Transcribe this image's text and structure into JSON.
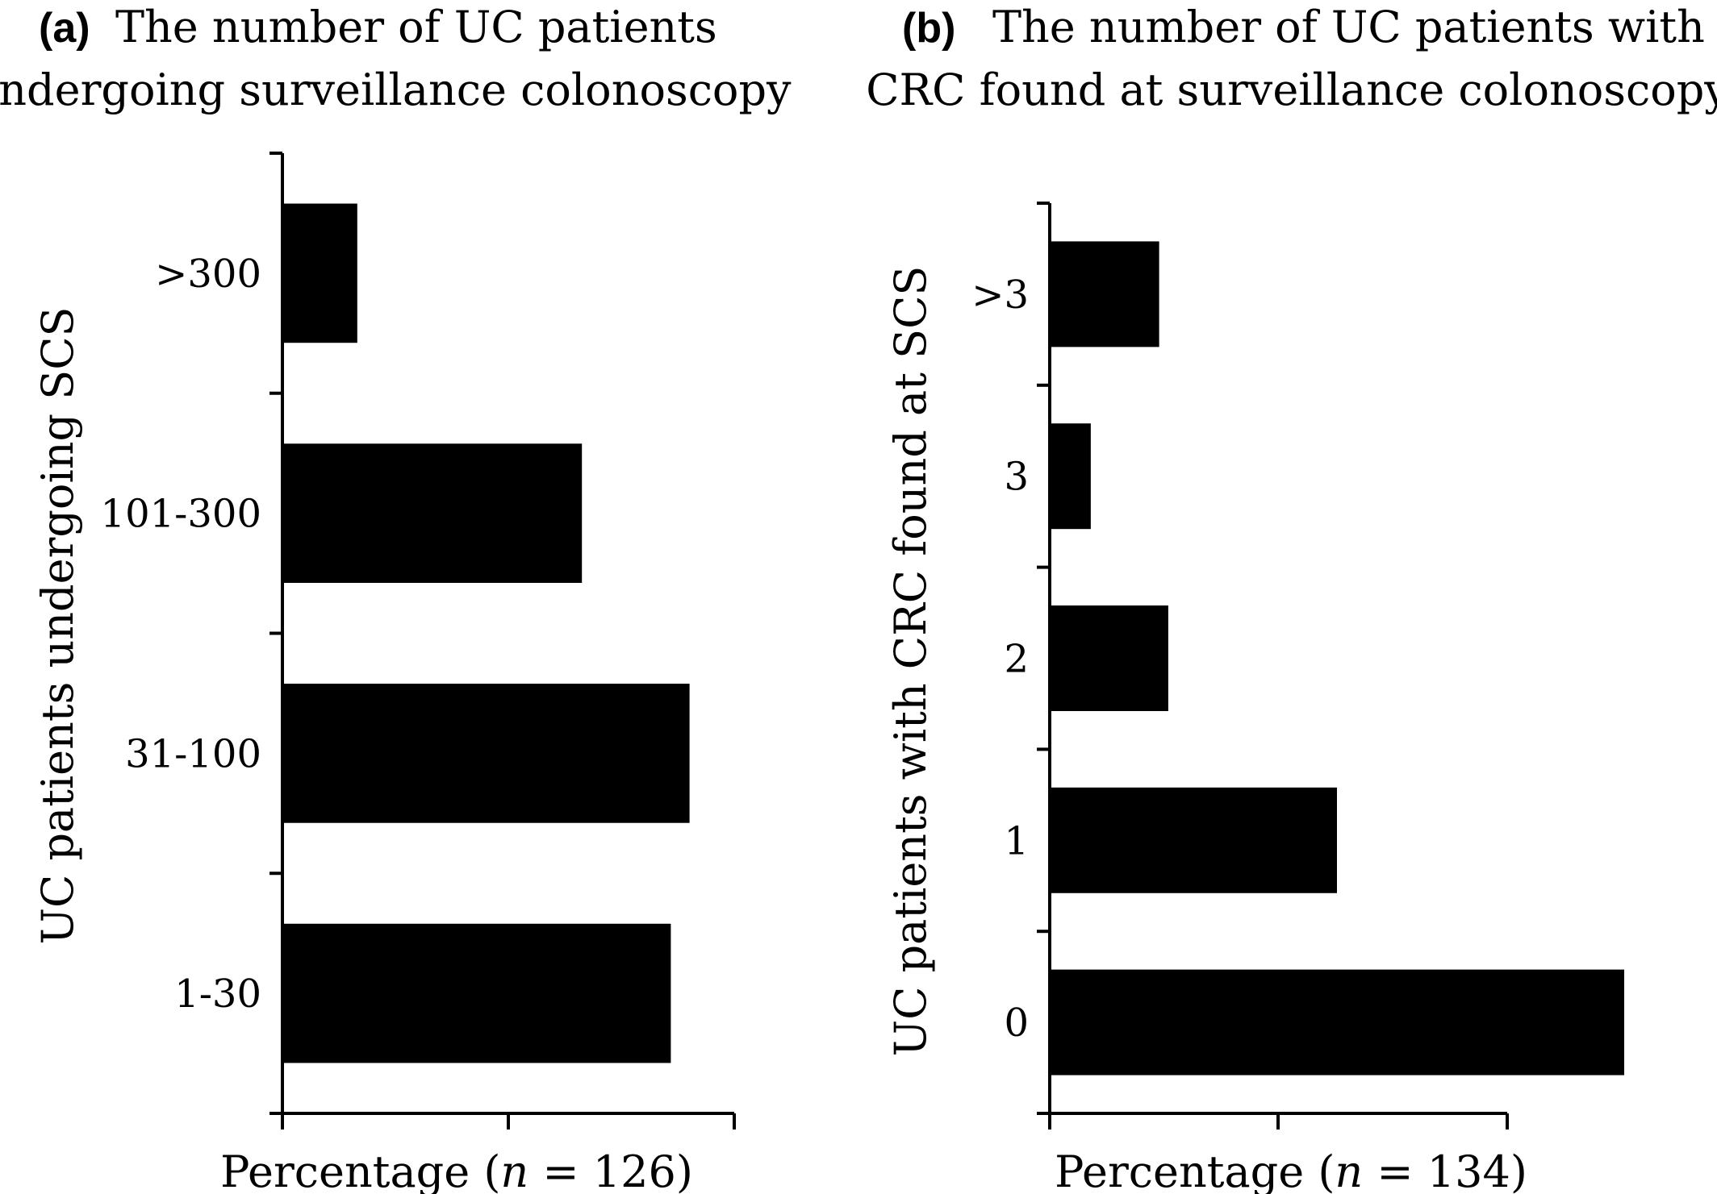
{
  "panels": [
    {
      "label": "(a)",
      "title_line1": "The number of UC patients",
      "title_line2": "undergoing surveillance colonoscopy",
      "xlabel_prefix": "Percentage (",
      "xlabel_n": "n",
      "xlabel_suffix": " = 126)",
      "ylabel": "UC patients undergoing SCS"
    },
    {
      "label": "(b)",
      "title_line1": "The number of UC patients with",
      "title_line2": "CRC found at surveillance colonoscopy",
      "xlabel_prefix": "Percentage (",
      "xlabel_n": "n",
      "xlabel_suffix": " = 134)",
      "ylabel": "UC patients with CRC found at SCS"
    }
  ],
  "chart_data": [
    {
      "type": "bar",
      "orientation": "horizontal",
      "title": "The number of UC patients undergoing surveillance colonoscopy",
      "xlabel": "Percentage (n = 126)",
      "ylabel": "UC patients undergoing SCS",
      "categories": [
        "1-30",
        "31-100",
        "101-300",
        ">300"
      ],
      "values": [
        0.83,
        0.87,
        0.64,
        0.16
      ],
      "value_units": "relative (fraction of x-axis range; no tick values printed)",
      "xlim": [
        0,
        1
      ],
      "grid": false,
      "bar_color": "#000000"
    },
    {
      "type": "bar",
      "orientation": "horizontal",
      "title": "The number of UC patients with CRC found at surveillance colonoscopy",
      "xlabel": "Percentage (n = 134)",
      "ylabel": "UC patients with CRC found at SCS",
      "categories": [
        "0",
        "1",
        "2",
        "3",
        ">3"
      ],
      "values": [
        1.26,
        0.63,
        0.26,
        0.09,
        0.24
      ],
      "value_units": "relative (fraction of x-axis tick spacing; no tick values printed)",
      "xlim": [
        0,
        1.26
      ],
      "grid": false,
      "bar_color": "#000000"
    }
  ]
}
